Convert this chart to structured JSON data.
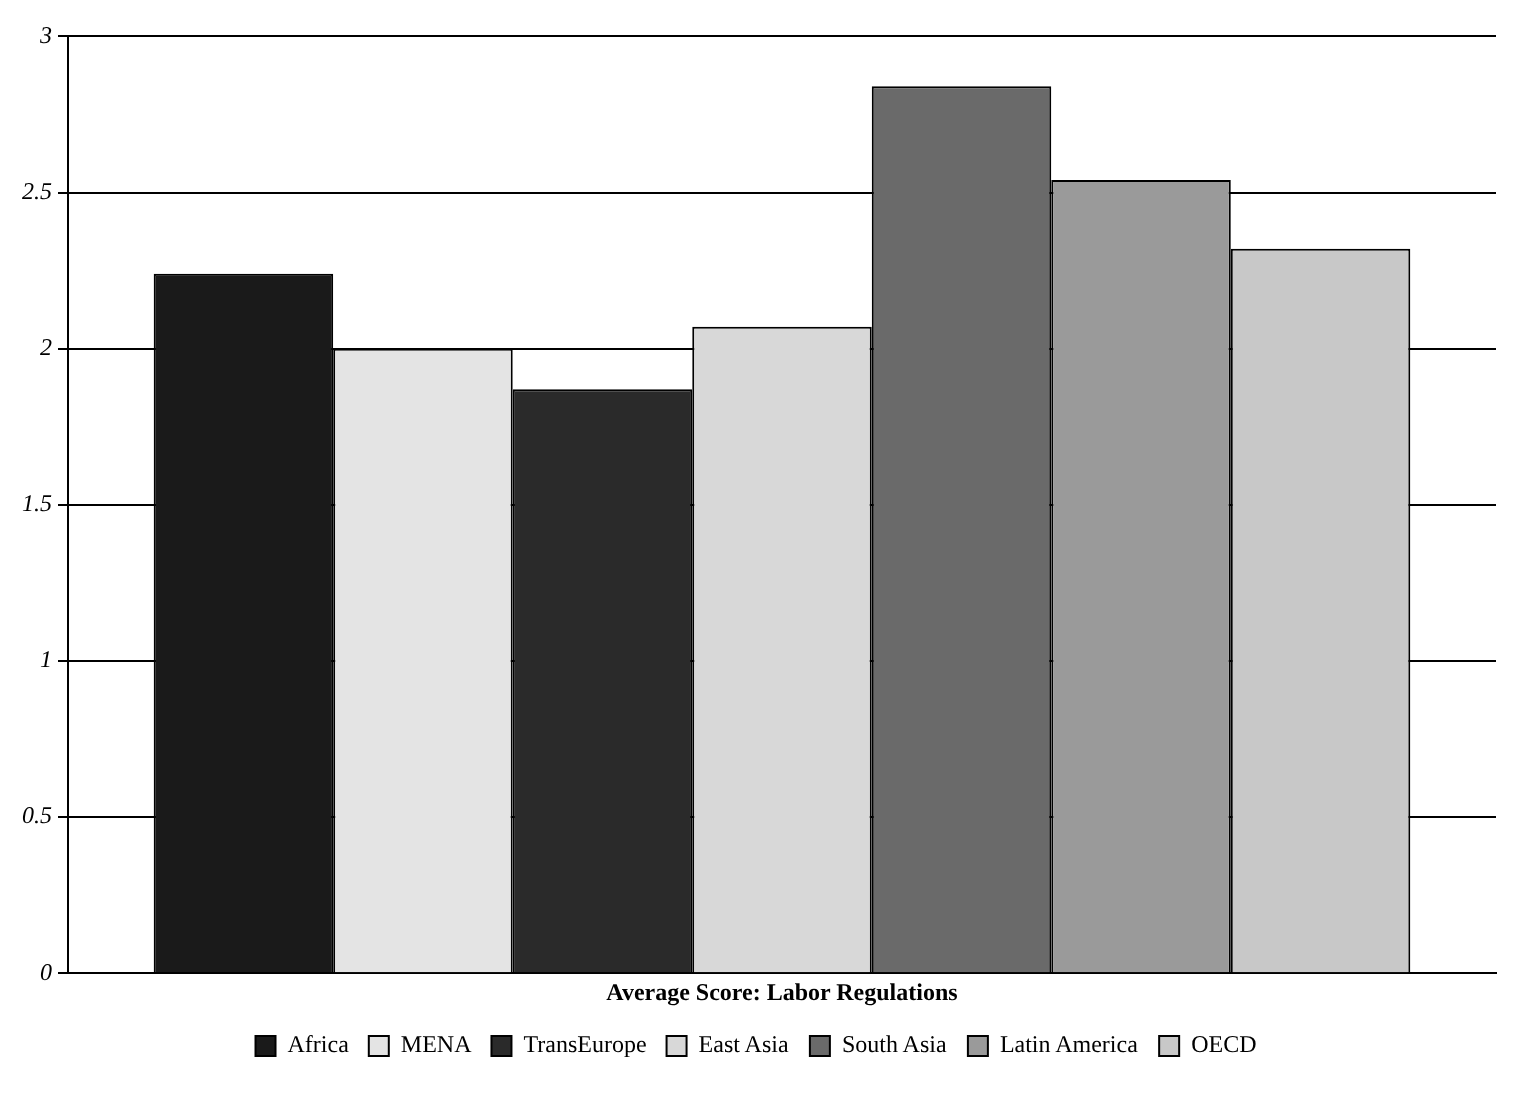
{
  "chart_data": {
    "type": "bar",
    "categories": [
      "Average Score: Labor Regulations"
    ],
    "series": [
      {
        "name": "Africa",
        "color": "#1a1a1a",
        "values": [
          2.24
        ]
      },
      {
        "name": "MENA",
        "color": "#e4e4e4",
        "values": [
          2.0
        ]
      },
      {
        "name": "TransEurope",
        "color": "#2a2a2a",
        "values": [
          1.87
        ]
      },
      {
        "name": "East Asia",
        "color": "#d8d8d8",
        "values": [
          2.07
        ]
      },
      {
        "name": "South Asia",
        "color": "#6a6a6a",
        "values": [
          2.84
        ]
      },
      {
        "name": "Latin America",
        "color": "#9a9a9a",
        "values": [
          2.54
        ]
      },
      {
        "name": "OECD",
        "color": "#c8c8c8",
        "values": [
          2.32
        ]
      }
    ],
    "ylim": [
      0,
      3
    ],
    "yticks": [
      0,
      0.5,
      1,
      1.5,
      2,
      2.5,
      3
    ],
    "grid": "y",
    "legend": "bottom"
  }
}
